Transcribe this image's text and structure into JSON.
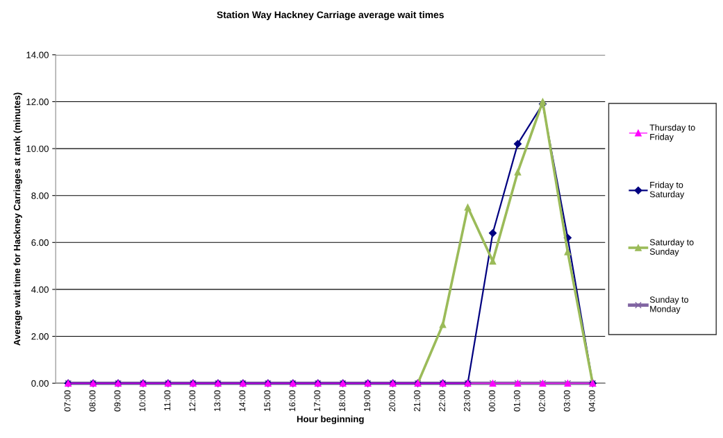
{
  "chart_data": {
    "type": "line",
    "title": "Station Way Hackney Carriage average wait times",
    "xlabel": "Hour beginning",
    "ylabel": "Average wait time for Hackney Carriages at rank (minutes)",
    "categories": [
      "07:00",
      "08:00",
      "09:00",
      "10:00",
      "11:00",
      "12:00",
      "13:00",
      "14:00",
      "15:00",
      "16:00",
      "17:00",
      "18:00",
      "19:00",
      "20:00",
      "21:00",
      "22:00",
      "23:00",
      "00:00",
      "01:00",
      "02:00",
      "03:00",
      "04:00"
    ],
    "series": [
      {
        "name": "Thursday to Friday",
        "color": "#ff00ff",
        "marker": "triangle",
        "values": [
          0,
          0,
          0,
          0,
          0,
          0,
          0,
          0,
          0,
          0,
          0,
          0,
          0,
          0,
          0,
          0,
          0,
          0,
          0,
          0,
          0,
          0
        ]
      },
      {
        "name": "Friday to Saturday",
        "color": "#000080",
        "marker": "diamond",
        "values": [
          0,
          0,
          0,
          0,
          0,
          0,
          0,
          0,
          0,
          0,
          0,
          0,
          0,
          0,
          0,
          0,
          0,
          6.4,
          10.2,
          11.9,
          6.2,
          0
        ]
      },
      {
        "name": "Saturday to Sunday",
        "color": "#9bbb59",
        "marker": "triangle",
        "values": [
          null,
          null,
          null,
          null,
          null,
          null,
          null,
          null,
          null,
          null,
          null,
          null,
          null,
          null,
          0,
          2.5,
          7.5,
          5.2,
          9.0,
          12.0,
          5.6,
          0
        ]
      },
      {
        "name": "Sunday to Monday",
        "color": "#8064a2",
        "marker": "cross",
        "values": [
          0,
          0,
          0,
          0,
          0,
          0,
          0,
          0,
          0,
          0,
          0,
          0,
          0,
          0,
          0,
          0,
          0,
          0,
          0,
          0,
          0,
          0
        ]
      }
    ],
    "ylim": [
      0,
      14
    ],
    "yticks": [
      {
        "value": 0,
        "label": "0.00"
      },
      {
        "value": 2,
        "label": "2.00"
      },
      {
        "value": 4,
        "label": "4.00"
      },
      {
        "value": 6,
        "label": "6.00"
      },
      {
        "value": 8,
        "label": "8.00"
      },
      {
        "value": 10,
        "label": "10.00"
      },
      {
        "value": 12,
        "label": "12.00"
      },
      {
        "value": 14,
        "label": "14.00"
      }
    ],
    "grid": "y",
    "legend": "right",
    "line_style": "solid"
  }
}
